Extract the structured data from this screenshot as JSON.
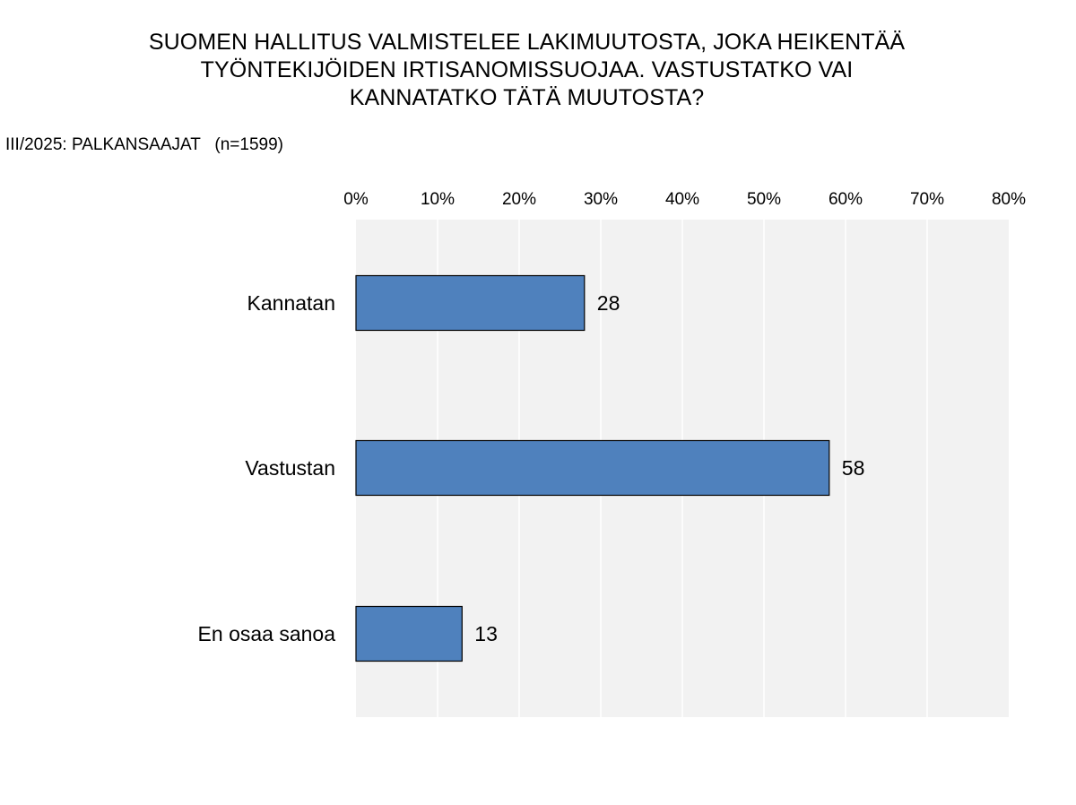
{
  "chart_data": {
    "type": "bar",
    "orientation": "horizontal",
    "title_lines": [
      "SUOMEN HALLITUS  VALMISTELEE LAKIMUUTOSTA,  JOKA HEIKENTÄÄ",
      "TYÖNTEKIJÖIDEN  IRTISANOMISSUOJAA.  VASTUSTATKO  VAI",
      "KANNATATKO  TÄTÄ  MUUTOSTA?"
    ],
    "subtitle": "III/2025: PALKANSAAJAT   (n=1599)",
    "categories": [
      "Kannatan",
      "Vastustan",
      "En osaa sanoa"
    ],
    "values": [
      28,
      58,
      13
    ],
    "xlim": [
      0,
      80
    ],
    "x_ticks": [
      "0%",
      "10%",
      "20%",
      "30%",
      "40%",
      "50%",
      "60%",
      "70%",
      "80%"
    ],
    "x_axis_position": "top",
    "grid": true,
    "legend": "none",
    "colors": {
      "bar": "#4f81bd",
      "bar_border": "#000000",
      "plot_background": "#f2f2f2",
      "grid": "#ffffff"
    }
  }
}
